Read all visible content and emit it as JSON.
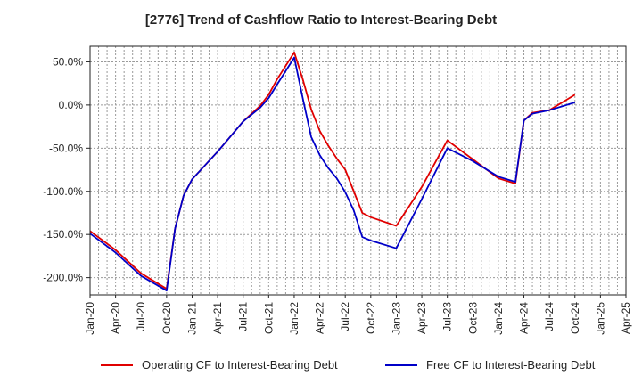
{
  "chart_data": {
    "type": "line",
    "title": "[2776]  Trend of Cashflow Ratio to Interest-Bearing Debt",
    "xlabel": "",
    "ylabel": "",
    "x_tick_labels": [
      "Jan-20",
      "Apr-20",
      "Jul-20",
      "Oct-20",
      "Jan-21",
      "Apr-21",
      "Jul-21",
      "Oct-21",
      "Jan-22",
      "Apr-22",
      "Jul-22",
      "Oct-22",
      "Jan-23",
      "Apr-23",
      "Jul-23",
      "Oct-23",
      "Jan-24",
      "Apr-24",
      "Jul-24",
      "Oct-24",
      "Jan-25",
      "Apr-25"
    ],
    "y_ticks": [
      -200,
      -150,
      -100,
      -50,
      0,
      50
    ],
    "y_tick_labels": [
      "-200.0%",
      "-150.0%",
      "-100.0%",
      "-50.0%",
      "0.0%",
      "50.0%"
    ],
    "ylim": [
      -220,
      68
    ],
    "xlim_months": [
      0,
      63
    ],
    "grid": true,
    "legend_position": "bottom",
    "series": [
      {
        "name": "Operating CF to Interest-Bearing Debt",
        "color": "#e00000",
        "x": [
          0,
          3,
          6,
          9,
          10,
          11,
          12,
          15,
          18,
          20,
          21,
          22,
          24,
          25,
          26,
          27,
          28,
          29,
          30,
          32,
          33,
          36,
          39,
          42,
          45,
          48,
          50,
          51,
          52,
          54,
          57
        ],
        "values": [
          -146,
          -168,
          -195,
          -213,
          -143,
          -105,
          -86,
          -54,
          -19,
          -1,
          12,
          30,
          61,
          30,
          -5,
          -30,
          -47,
          -62,
          -75,
          -125,
          -130,
          -140,
          -95,
          -41,
          -63,
          -85,
          -91,
          -18,
          -9,
          -6,
          12
        ]
      },
      {
        "name": "Free CF to Interest-Bearing Debt",
        "color": "#0000c8",
        "x": [
          0,
          3,
          6,
          9,
          10,
          11,
          12,
          15,
          18,
          20,
          21,
          22,
          24,
          25,
          26,
          27,
          28,
          29,
          30,
          31,
          32,
          33,
          36,
          39,
          42,
          45,
          48,
          50,
          51,
          52,
          54,
          57
        ],
        "values": [
          -149,
          -171,
          -198,
          -215,
          -143,
          -105,
          -86,
          -54,
          -19,
          -3,
          8,
          24,
          55,
          8,
          -37,
          -58,
          -73,
          -85,
          -101,
          -122,
          -153,
          -157,
          -166,
          -109,
          -50,
          -65,
          -83,
          -89,
          -18,
          -10,
          -6,
          3
        ]
      }
    ]
  }
}
